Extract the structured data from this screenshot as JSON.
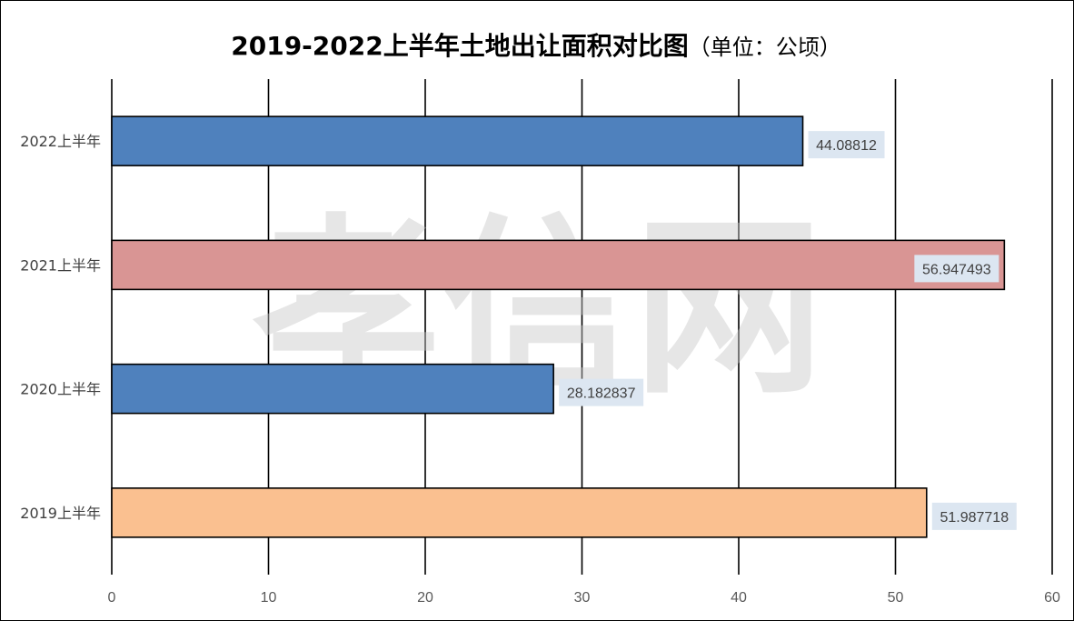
{
  "chart_data": {
    "type": "bar",
    "orientation": "horizontal",
    "title": "2019-2022上半年土地出让面积对比图",
    "title_unit": "（单位：公顷）",
    "categories": [
      "2022上半年",
      "2021上半年",
      "2020上半年",
      "2019上半年"
    ],
    "values": [
      44.08812,
      56.947493,
      28.182837,
      51.987718
    ],
    "data_labels": [
      "44.08812",
      "56.947493",
      "28.182837",
      "51.987718"
    ],
    "bar_colors": [
      "#4f81bd",
      "#d99594",
      "#4f81bd",
      "#fac090"
    ],
    "xlim": [
      0,
      60
    ],
    "x_ticks": [
      0,
      10,
      20,
      30,
      40,
      50,
      60
    ],
    "grid": true,
    "xlabel": "",
    "ylabel": ""
  },
  "watermark": "孝信网",
  "colors": {
    "gridline": "#000000",
    "bar_stroke": "#000000",
    "label_bg": "#dce6f1",
    "tick_text": "#595959"
  }
}
